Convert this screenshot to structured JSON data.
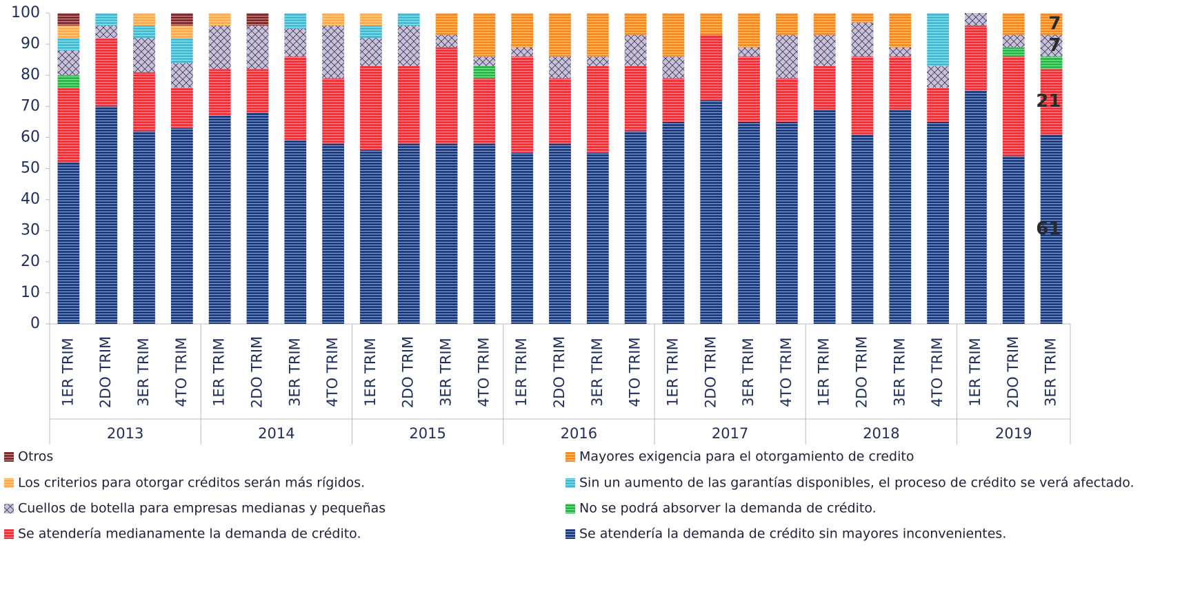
{
  "chart_data": {
    "type": "stacked_bar",
    "year_groups": [
      {
        "name": "2013",
        "categories": [
          "1ER TRIM",
          "2DO TRIM",
          "3ER TRIM",
          "4TO TRIM"
        ]
      },
      {
        "name": "2014",
        "categories": [
          "1ER TRIM",
          "2DO TRIM",
          "3ER TRIM",
          "4TO TRIM"
        ]
      },
      {
        "name": "2015",
        "categories": [
          "1ER TRIM",
          "2DO TRIM",
          "3ER TRIM",
          "4TO TRIM"
        ]
      },
      {
        "name": "2016",
        "categories": [
          "1ER TRIM",
          "2DO TRIM",
          "3ER TRIM",
          "4TO TRIM"
        ]
      },
      {
        "name": "2017",
        "categories": [
          "1ER TRIM",
          "2DO TRIM",
          "3ER TRIM",
          "4TO TRIM"
        ]
      },
      {
        "name": "2018",
        "categories": [
          "1ER TRIM",
          "2DO TRIM",
          "3ER TRIM",
          "4TO TRIM"
        ]
      },
      {
        "name": "2019",
        "categories": [
          "1ER TRIM",
          "2DO TRIM",
          "3ER TRIM"
        ]
      }
    ],
    "ylim": [
      0,
      100
    ],
    "yticks": [
      0,
      10,
      20,
      30,
      40,
      50,
      60,
      70,
      80,
      90,
      100
    ],
    "series": [
      {
        "name": "Se atendería la demanda de crédito sin mayores inconvenientes.",
        "color": "#1f3c7a",
        "values": [
          52,
          70,
          62,
          63,
          67,
          68,
          59,
          58,
          56,
          58,
          58,
          58,
          55,
          58,
          55,
          62,
          65,
          72,
          65,
          65,
          69,
          61,
          69,
          65,
          75,
          54,
          61
        ],
        "value_labels": [
          null,
          null,
          null,
          null,
          null,
          null,
          null,
          null,
          null,
          null,
          null,
          null,
          null,
          null,
          null,
          null,
          null,
          null,
          null,
          null,
          null,
          null,
          null,
          null,
          null,
          null,
          "61"
        ]
      },
      {
        "name": "Se atendería medianamente la demanda de crédito.",
        "color": "#e8343a",
        "values": [
          24,
          22,
          19,
          13,
          15,
          14,
          27,
          21,
          27,
          25,
          31,
          21,
          31,
          21,
          28,
          21,
          14,
          21,
          21,
          14,
          14,
          25,
          17,
          11,
          21,
          32,
          21
        ],
        "value_labels": [
          null,
          null,
          null,
          null,
          null,
          null,
          null,
          null,
          null,
          null,
          null,
          null,
          null,
          null,
          null,
          null,
          null,
          null,
          null,
          null,
          null,
          null,
          null,
          null,
          null,
          null,
          "21"
        ]
      },
      {
        "name": "No se podrá absorver la demanda de crédito.",
        "color": "#2db34a",
        "values": [
          4,
          0,
          0,
          0,
          0,
          0,
          0,
          0,
          0,
          0,
          0,
          4,
          0,
          0,
          0,
          0,
          0,
          0,
          0,
          0,
          0,
          0,
          0,
          0,
          0,
          3,
          4
        ]
      },
      {
        "name": "Cuellos de botella para empresas medianas y pequeñas",
        "color": "#c9c0dc",
        "hatch": "cross",
        "values": [
          8,
          4,
          11,
          8,
          14,
          14,
          9,
          17,
          9,
          13,
          4,
          3,
          3,
          7,
          3,
          10,
          7,
          0,
          3,
          14,
          10,
          11,
          3,
          7,
          4,
          4,
          7
        ],
        "value_labels": [
          null,
          null,
          null,
          null,
          null,
          null,
          null,
          null,
          null,
          null,
          null,
          null,
          null,
          null,
          null,
          null,
          null,
          null,
          null,
          null,
          null,
          null,
          null,
          null,
          null,
          null,
          "7"
        ]
      },
      {
        "name": "Sin un aumento de las garantías disponibles, el proceso de crédito se verá afectado.",
        "color": "#4bb8d0",
        "values": [
          4,
          4,
          4,
          8,
          0,
          0,
          5,
          0,
          4,
          4,
          0,
          0,
          0,
          0,
          0,
          0,
          0,
          0,
          0,
          0,
          0,
          0,
          0,
          17,
          0,
          0,
          0
        ]
      },
      {
        "name": "Los criterios para otorgar créditos serán más rígidos.",
        "color": "#f8ac55",
        "values": [
          4,
          0,
          4,
          4,
          4,
          0,
          0,
          4,
          4,
          0,
          0,
          0,
          0,
          0,
          0,
          0,
          0,
          0,
          0,
          0,
          0,
          0,
          0,
          0,
          0,
          0,
          0
        ]
      },
      {
        "name": "Mayores exigencia para el otorgamiento de credito",
        "color": "#f28c28",
        "values": [
          0,
          0,
          0,
          0,
          0,
          0,
          0,
          0,
          0,
          0,
          7,
          14,
          11,
          14,
          14,
          7,
          14,
          7,
          11,
          7,
          7,
          3,
          11,
          0,
          0,
          7,
          7
        ],
        "value_labels": [
          null,
          null,
          null,
          null,
          null,
          null,
          null,
          null,
          null,
          null,
          null,
          null,
          null,
          null,
          null,
          null,
          null,
          null,
          null,
          null,
          null,
          null,
          null,
          null,
          null,
          null,
          "7"
        ]
      },
      {
        "name": "Otros",
        "color": "#7b2c2c",
        "values": [
          4,
          0,
          0,
          4,
          0,
          4,
          0,
          0,
          0,
          0,
          0,
          0,
          0,
          0,
          0,
          0,
          0,
          0,
          0,
          0,
          0,
          0,
          0,
          0,
          0,
          0,
          0
        ]
      }
    ]
  }
}
